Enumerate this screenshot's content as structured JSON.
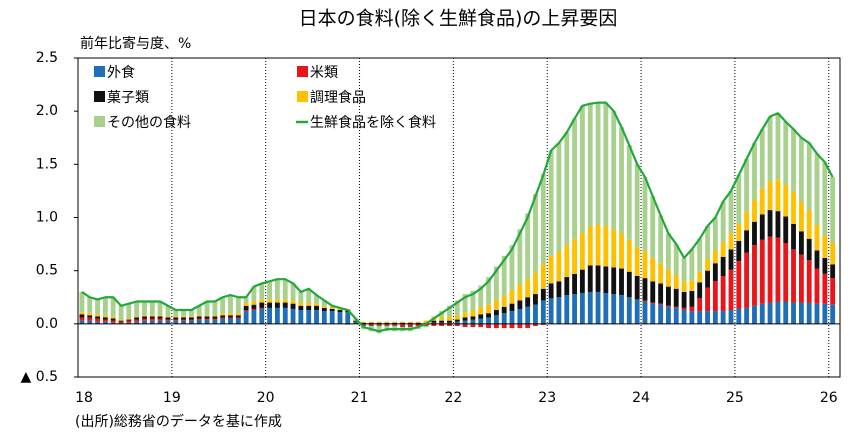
{
  "chart_data": {
    "type": "bar",
    "stacked": true,
    "title": "日本の食料(除く生鮮食品)の上昇要因",
    "y_label": "前年比寄与度、%",
    "source": "(出所)総務省のデータを基に作成",
    "xlim": [
      18,
      26.12
    ],
    "xticks": [
      18,
      19,
      20,
      21,
      22,
      23,
      24,
      25,
      26
    ],
    "ylim": [
      -0.5,
      2.5
    ],
    "yticks": [
      {
        "value": 2.5,
        "label": "2.5"
      },
      {
        "value": 2.0,
        "label": "2.0"
      },
      {
        "value": 1.5,
        "label": "1.5"
      },
      {
        "value": 1.0,
        "label": "1.0"
      },
      {
        "value": 0.5,
        "label": "0.5"
      },
      {
        "value": 0,
        "label": "0.0"
      },
      {
        "value": -0.5,
        "label": "▲ 0.5"
      }
    ],
    "x": [
      18.0,
      18.083,
      18.167,
      18.25,
      18.333,
      18.417,
      18.5,
      18.583,
      18.667,
      18.75,
      18.833,
      18.917,
      19.0,
      19.083,
      19.167,
      19.25,
      19.333,
      19.417,
      19.5,
      19.583,
      19.667,
      19.75,
      19.833,
      19.917,
      20.0,
      20.083,
      20.167,
      20.25,
      20.333,
      20.417,
      20.5,
      20.583,
      20.667,
      20.75,
      20.833,
      20.917,
      21.0,
      21.083,
      21.167,
      21.25,
      21.333,
      21.417,
      21.5,
      21.583,
      21.667,
      21.75,
      21.833,
      21.917,
      22.0,
      22.083,
      22.167,
      22.25,
      22.333,
      22.417,
      22.5,
      22.583,
      22.667,
      22.75,
      22.833,
      22.917,
      23.0,
      23.083,
      23.167,
      23.25,
      23.333,
      23.417,
      23.5,
      23.583,
      23.667,
      23.75,
      23.833,
      23.917,
      24.0,
      24.083,
      24.167,
      24.25,
      24.333,
      24.417,
      24.5,
      24.583,
      24.667,
      24.75,
      24.833,
      24.917,
      25.0,
      25.083,
      25.167,
      25.25,
      25.333,
      25.417,
      25.5,
      25.583,
      25.667,
      25.75,
      25.833,
      25.917,
      26.0
    ],
    "series": [
      {
        "name": "外食",
        "color": "#1f6fb8",
        "type": "bar",
        "values": [
          0.03,
          0.03,
          0.02,
          0.02,
          0.01,
          0.0,
          0.01,
          0.02,
          0.03,
          0.03,
          0.03,
          0.03,
          0.03,
          0.03,
          0.03,
          0.04,
          0.04,
          0.04,
          0.05,
          0.05,
          0.05,
          0.12,
          0.13,
          0.14,
          0.15,
          0.15,
          0.15,
          0.14,
          0.13,
          0.13,
          0.13,
          0.12,
          0.12,
          0.11,
          0.11,
          0.02,
          -0.01,
          -0.01,
          -0.01,
          -0.01,
          -0.01,
          -0.01,
          -0.01,
          0.0,
          0.0,
          0.01,
          0.01,
          0.01,
          0.02,
          0.03,
          0.04,
          0.05,
          0.06,
          0.08,
          0.1,
          0.12,
          0.14,
          0.16,
          0.18,
          0.22,
          0.24,
          0.25,
          0.27,
          0.28,
          0.29,
          0.3,
          0.3,
          0.29,
          0.28,
          0.27,
          0.25,
          0.23,
          0.21,
          0.19,
          0.18,
          0.16,
          0.15,
          0.13,
          0.12,
          0.12,
          0.12,
          0.12,
          0.12,
          0.13,
          0.14,
          0.15,
          0.17,
          0.19,
          0.2,
          0.21,
          0.21,
          0.2,
          0.2,
          0.2,
          0.19,
          0.19,
          0.18
        ]
      },
      {
        "name": "米類",
        "color": "#e8151b",
        "type": "bar",
        "values": [
          0.03,
          0.03,
          0.03,
          0.02,
          0.02,
          0.02,
          0.02,
          0.02,
          0.02,
          0.02,
          0.02,
          0.01,
          0.01,
          0.01,
          0.01,
          0.01,
          0.01,
          0.01,
          0.01,
          0.01,
          0.01,
          0.01,
          0.01,
          0.01,
          0,
          0,
          0,
          0,
          0,
          0,
          0,
          0,
          0,
          0,
          0,
          0,
          -0.01,
          -0.01,
          -0.01,
          -0.01,
          -0.01,
          -0.02,
          -0.02,
          -0.02,
          -0.02,
          -0.02,
          -0.02,
          -0.02,
          -0.02,
          -0.03,
          -0.03,
          -0.03,
          -0.04,
          -0.04,
          -0.04,
          -0.04,
          -0.04,
          -0.04,
          -0.02,
          -0.01,
          0,
          0,
          0,
          0,
          0,
          0,
          0,
          0,
          0,
          0,
          0,
          0,
          0.01,
          0.01,
          0.01,
          0.01,
          0.01,
          0.02,
          0.04,
          0.12,
          0.22,
          0.28,
          0.33,
          0.38,
          0.45,
          0.52,
          0.57,
          0.6,
          0.62,
          0.6,
          0.55,
          0.5,
          0.45,
          0.4,
          0.33,
          0.28,
          0.25
        ]
      },
      {
        "name": "菓子類",
        "color": "#111111",
        "type": "bar",
        "values": [
          0.03,
          0.02,
          0.02,
          0.02,
          0.02,
          0.01,
          0.01,
          0.02,
          0.02,
          0.02,
          0.02,
          0.02,
          0.02,
          0.02,
          0.02,
          0.02,
          0.02,
          0.02,
          0.02,
          0.02,
          0.02,
          0.04,
          0.04,
          0.05,
          0.05,
          0.05,
          0.05,
          0.05,
          0.04,
          0.04,
          0.04,
          0.03,
          0.02,
          0.02,
          0.02,
          0.01,
          0.01,
          0.01,
          0.01,
          0.01,
          0.01,
          0.01,
          0.01,
          0.01,
          0.01,
          0.02,
          0.02,
          0.02,
          0.02,
          0.03,
          0.03,
          0.04,
          0.04,
          0.05,
          0.06,
          0.07,
          0.08,
          0.09,
          0.1,
          0.11,
          0.14,
          0.15,
          0.17,
          0.19,
          0.22,
          0.25,
          0.25,
          0.25,
          0.25,
          0.25,
          0.24,
          0.22,
          0.21,
          0.2,
          0.19,
          0.18,
          0.17,
          0.15,
          0.15,
          0.15,
          0.16,
          0.17,
          0.18,
          0.19,
          0.19,
          0.21,
          0.22,
          0.24,
          0.25,
          0.25,
          0.25,
          0.24,
          0.22,
          0.2,
          0.17,
          0.15,
          0.13
        ]
      },
      {
        "name": "調理食品",
        "color": "#ffc000",
        "type": "bar",
        "values": [
          0.02,
          0.02,
          0.02,
          0.02,
          0.02,
          0.01,
          0.01,
          0.01,
          0.01,
          0.01,
          0.01,
          0.01,
          0.01,
          0.01,
          0.01,
          0.01,
          0.01,
          0.01,
          0.02,
          0.02,
          0.02,
          0.03,
          0.03,
          0.03,
          0.03,
          0.03,
          0.03,
          0.03,
          0.03,
          0.03,
          0.02,
          0.02,
          0.02,
          0.01,
          0.01,
          0.01,
          0.01,
          0.01,
          0.01,
          0.01,
          0.01,
          0.01,
          0.01,
          0.01,
          0.02,
          0.03,
          0.03,
          0.04,
          0.04,
          0.05,
          0.06,
          0.07,
          0.08,
          0.1,
          0.11,
          0.13,
          0.15,
          0.17,
          0.2,
          0.23,
          0.26,
          0.28,
          0.3,
          0.33,
          0.35,
          0.37,
          0.38,
          0.38,
          0.36,
          0.33,
          0.3,
          0.27,
          0.25,
          0.22,
          0.19,
          0.16,
          0.13,
          0.1,
          0.1,
          0.1,
          0.11,
          0.12,
          0.14,
          0.15,
          0.16,
          0.18,
          0.21,
          0.24,
          0.27,
          0.3,
          0.3,
          0.3,
          0.28,
          0.27,
          0.24,
          0.21,
          0.2
        ]
      },
      {
        "name": "その他の食料",
        "color": "#a9d18e",
        "type": "bar",
        "values": [
          0.19,
          0.15,
          0.14,
          0.17,
          0.18,
          0.13,
          0.14,
          0.14,
          0.13,
          0.13,
          0.13,
          0.1,
          0.06,
          0.06,
          0.06,
          0.09,
          0.13,
          0.13,
          0.15,
          0.17,
          0.15,
          0.05,
          0.14,
          0.15,
          0.17,
          0.19,
          0.19,
          0.16,
          0.1,
          0.13,
          0.08,
          0.05,
          0.01,
          0.01,
          -0.01,
          0.01,
          -0.03,
          -0.05,
          -0.07,
          -0.05,
          -0.05,
          -0.04,
          -0.04,
          -0.03,
          -0.01,
          0.01,
          0.06,
          0.1,
          0.14,
          0.17,
          0.18,
          0.2,
          0.26,
          0.31,
          0.37,
          0.42,
          0.52,
          0.62,
          0.74,
          0.85,
          0.99,
          1.02,
          1.06,
          1.13,
          1.19,
          1.15,
          1.15,
          1.16,
          1.11,
          1.0,
          0.89,
          0.78,
          0.7,
          0.58,
          0.45,
          0.34,
          0.29,
          0.22,
          0.29,
          0.31,
          0.31,
          0.31,
          0.38,
          0.4,
          0.46,
          0.49,
          0.53,
          0.56,
          0.61,
          0.62,
          0.59,
          0.59,
          0.6,
          0.63,
          0.67,
          0.69,
          0.62
        ]
      },
      {
        "name": "生鮮食品を除く食料",
        "color": "#22a83a",
        "type": "line",
        "values": [
          0.3,
          0.25,
          0.23,
          0.25,
          0.25,
          0.17,
          0.19,
          0.21,
          0.21,
          0.21,
          0.21,
          0.17,
          0.13,
          0.13,
          0.13,
          0.17,
          0.21,
          0.21,
          0.25,
          0.27,
          0.25,
          0.25,
          0.35,
          0.38,
          0.4,
          0.42,
          0.42,
          0.38,
          0.3,
          0.33,
          0.27,
          0.22,
          0.17,
          0.15,
          0.13,
          0.05,
          -0.03,
          -0.05,
          -0.07,
          -0.05,
          -0.05,
          -0.05,
          -0.05,
          -0.03,
          0.0,
          0.05,
          0.1,
          0.15,
          0.2,
          0.25,
          0.28,
          0.33,
          0.4,
          0.5,
          0.6,
          0.7,
          0.85,
          1.0,
          1.2,
          1.4,
          1.63,
          1.7,
          1.8,
          1.93,
          2.05,
          2.07,
          2.08,
          2.08,
          2.0,
          1.85,
          1.68,
          1.5,
          1.38,
          1.2,
          1.02,
          0.85,
          0.75,
          0.62,
          0.7,
          0.8,
          0.92,
          1.0,
          1.15,
          1.25,
          1.4,
          1.55,
          1.7,
          1.83,
          1.95,
          1.98,
          1.9,
          1.83,
          1.75,
          1.7,
          1.6,
          1.52,
          1.38
        ]
      }
    ]
  }
}
